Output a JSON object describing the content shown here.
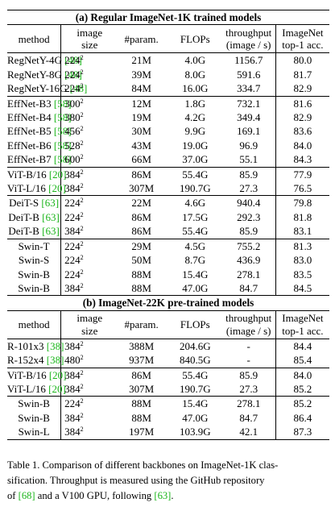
{
  "sections": [
    {
      "title": "(a) Regular ImageNet-1K trained models",
      "headers": {
        "method": "method",
        "size_top": "image",
        "size_bot": "size",
        "param": "#param.",
        "flops": "FLOPs",
        "tp_top": "throughput",
        "tp_bot": "(image / s)",
        "acc_top": "ImageNet",
        "acc_bot": "top-1 acc."
      },
      "groups": [
        [
          {
            "name": "RegNetY-4G",
            "cite": "[48]",
            "size": "224",
            "param": "21M",
            "flops": "4.0G",
            "tp": "1156.7",
            "acc": "80.0"
          },
          {
            "name": "RegNetY-8G",
            "cite": "[48]",
            "size": "224",
            "param": "39M",
            "flops": "8.0G",
            "tp": "591.6",
            "acc": "81.7"
          },
          {
            "name": "RegNetY-16G",
            "cite": "[48]",
            "size": "224",
            "param": "84M",
            "flops": "16.0G",
            "tp": "334.7",
            "acc": "82.9"
          }
        ],
        [
          {
            "name": "EffNet-B3",
            "cite": "[58]",
            "size": "300",
            "param": "12M",
            "flops": "1.8G",
            "tp": "732.1",
            "acc": "81.6"
          },
          {
            "name": "EffNet-B4",
            "cite": "[58]",
            "size": "380",
            "param": "19M",
            "flops": "4.2G",
            "tp": "349.4",
            "acc": "82.9"
          },
          {
            "name": "EffNet-B5",
            "cite": "[58]",
            "size": "456",
            "param": "30M",
            "flops": "9.9G",
            "tp": "169.1",
            "acc": "83.6"
          },
          {
            "name": "EffNet-B6",
            "cite": "[58]",
            "size": "528",
            "param": "43M",
            "flops": "19.0G",
            "tp": "96.9",
            "acc": "84.0"
          },
          {
            "name": "EffNet-B7",
            "cite": "[58]",
            "size": "600",
            "param": "66M",
            "flops": "37.0G",
            "tp": "55.1",
            "acc": "84.3"
          }
        ],
        [
          {
            "name": "ViT-B/16",
            "cite": "[20]",
            "size": "384",
            "param": "86M",
            "flops": "55.4G",
            "tp": "85.9",
            "acc": "77.9"
          },
          {
            "name": "ViT-L/16",
            "cite": "[20]",
            "size": "384",
            "param": "307M",
            "flops": "190.7G",
            "tp": "27.3",
            "acc": "76.5"
          }
        ],
        [
          {
            "name": "DeiT-S",
            "cite": "[63]",
            "size": "224",
            "param": "22M",
            "flops": "4.6G",
            "tp": "940.4",
            "acc": "79.8"
          },
          {
            "name": "DeiT-B",
            "cite": "[63]",
            "size": "224",
            "param": "86M",
            "flops": "17.5G",
            "tp": "292.3",
            "acc": "81.8"
          },
          {
            "name": "DeiT-B",
            "cite": "[63]",
            "size": "384",
            "param": "86M",
            "flops": "55.4G",
            "tp": "85.9",
            "acc": "83.1"
          }
        ],
        [
          {
            "name": "Swin-T",
            "cite": "",
            "size": "224",
            "param": "29M",
            "flops": "4.5G",
            "tp": "755.2",
            "acc": "81.3"
          },
          {
            "name": "Swin-S",
            "cite": "",
            "size": "224",
            "param": "50M",
            "flops": "8.7G",
            "tp": "436.9",
            "acc": "83.0"
          },
          {
            "name": "Swin-B",
            "cite": "",
            "size": "224",
            "param": "88M",
            "flops": "15.4G",
            "tp": "278.1",
            "acc": "83.5"
          },
          {
            "name": "Swin-B",
            "cite": "",
            "size": "384",
            "param": "88M",
            "flops": "47.0G",
            "tp": "84.7",
            "acc": "84.5"
          }
        ]
      ]
    },
    {
      "title": "(b) ImageNet-22K pre-trained models",
      "headers": {
        "method": "method",
        "size_top": "image",
        "size_bot": "size",
        "param": "#param.",
        "flops": "FLOPs",
        "tp_top": "throughput",
        "tp_bot": "(image / s)",
        "acc_top": "ImageNet",
        "acc_bot": "top-1 acc."
      },
      "groups": [
        [
          {
            "name": "R-101x3",
            "cite": "[38]",
            "size": "384",
            "param": "388M",
            "flops": "204.6G",
            "tp": "-",
            "acc": "84.4"
          },
          {
            "name": "R-152x4",
            "cite": "[38]",
            "size": "480",
            "param": "937M",
            "flops": "840.5G",
            "tp": "-",
            "acc": "85.4"
          }
        ],
        [
          {
            "name": "ViT-B/16",
            "cite": "[20]",
            "size": "384",
            "param": "86M",
            "flops": "55.4G",
            "tp": "85.9",
            "acc": "84.0"
          },
          {
            "name": "ViT-L/16",
            "cite": "[20]",
            "size": "384",
            "param": "307M",
            "flops": "190.7G",
            "tp": "27.3",
            "acc": "85.2"
          }
        ],
        [
          {
            "name": "Swin-B",
            "cite": "",
            "size": "224",
            "param": "88M",
            "flops": "15.4G",
            "tp": "278.1",
            "acc": "85.2"
          },
          {
            "name": "Swin-B",
            "cite": "",
            "size": "384",
            "param": "88M",
            "flops": "47.0G",
            "tp": "84.7",
            "acc": "86.4"
          },
          {
            "name": "Swin-L",
            "cite": "",
            "size": "384",
            "param": "197M",
            "flops": "103.9G",
            "tp": "42.1",
            "acc": "87.3"
          }
        ]
      ]
    }
  ],
  "superscript": "2",
  "caption": {
    "line1": "Table 1. Comparison of different backbones on ImageNet-1K clas-",
    "line2": "sification.  Throughput is measured using the GitHub repository",
    "line3a": "of ",
    "cite1": "[68]",
    "line3b": " and a V100 GPU, following ",
    "cite2": "[63]",
    "line3c": "."
  }
}
